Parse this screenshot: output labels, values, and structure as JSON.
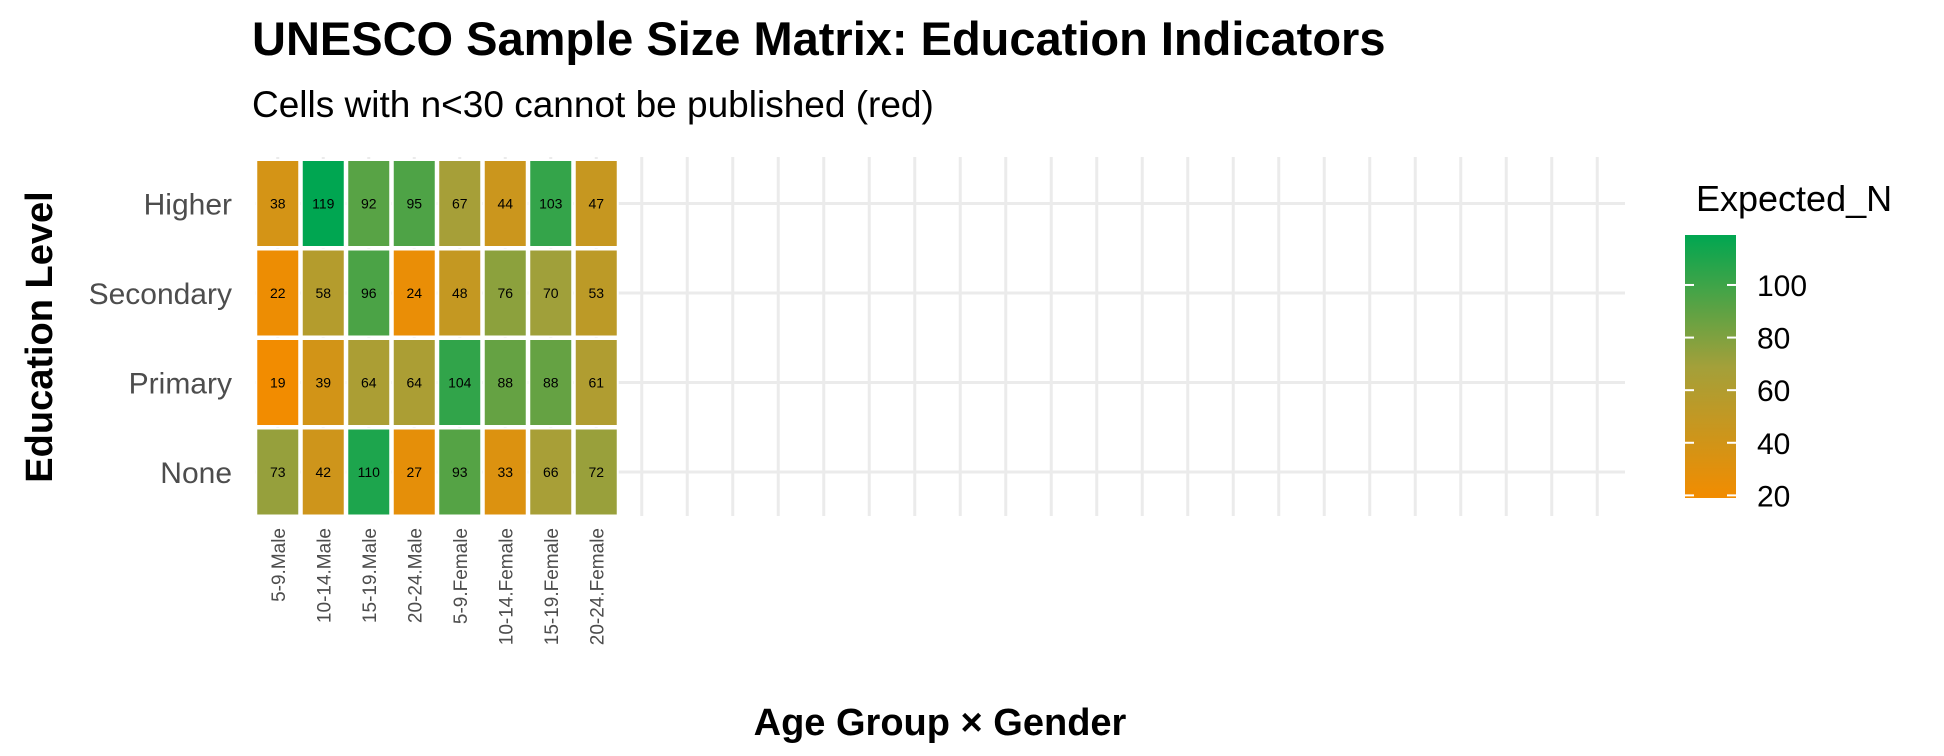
{
  "chart_data": {
    "type": "heatmap",
    "title": "UNESCO Sample Size Matrix: Education Indicators",
    "subtitle": "Cells with n<30 cannot be published (red)",
    "xlabel": "Age Group × Gender",
    "ylabel": "Education Level",
    "x_categories": [
      "5-9.Male",
      "10-14.Male",
      "15-19.Male",
      "20-24.Male",
      "5-9.Female",
      "10-14.Female",
      "15-19.Female",
      "20-24.Female"
    ],
    "y_categories": [
      "Higher",
      "Secondary",
      "Primary",
      "None"
    ],
    "values": [
      [
        38,
        119,
        92,
        95,
        67,
        44,
        103,
        47
      ],
      [
        22,
        58,
        96,
        24,
        48,
        76,
        70,
        53
      ],
      [
        19,
        39,
        64,
        64,
        104,
        88,
        88,
        61
      ],
      [
        73,
        42,
        110,
        27,
        93,
        33,
        66,
        72
      ]
    ],
    "legend": {
      "title": "Expected_N",
      "ticks": [
        20,
        40,
        60,
        80,
        100
      ],
      "range": [
        19,
        119
      ],
      "placement": "right"
    },
    "colors": {
      "low": "#F28C00",
      "mid": "#A3A03A",
      "high": "#00A651",
      "grid": "#ebebeb",
      "cell_border": "#ffffff"
    },
    "grid": true
  }
}
